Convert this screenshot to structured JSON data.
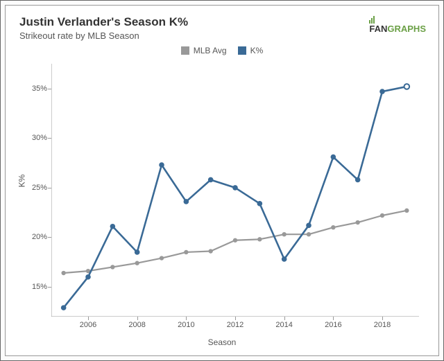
{
  "header": {
    "title": "Justin Verlander's Season K%",
    "subtitle": "Strikeout rate by MLB Season"
  },
  "brand": {
    "prefix": "FAN",
    "suffix": "GRAPHS"
  },
  "legend": {
    "items": [
      {
        "label": "MLB Avg",
        "color": "#999999"
      },
      {
        "label": "K%",
        "color": "#3a6a96"
      }
    ]
  },
  "axes": {
    "x": {
      "label": "Season",
      "min": 2004.5,
      "max": 2019.5,
      "ticks": [
        2006,
        2008,
        2010,
        2012,
        2014,
        2016,
        2018
      ]
    },
    "y": {
      "label": "K%",
      "min": 12,
      "max": 37.5,
      "ticks": [
        15,
        20,
        25,
        30,
        35
      ],
      "tick_suffix": "%"
    }
  },
  "series": [
    {
      "name": "MLB Avg",
      "color": "#999999",
      "line_width": 2.2,
      "marker_radius": 3.2,
      "x": [
        2005,
        2006,
        2007,
        2008,
        2009,
        2010,
        2011,
        2012,
        2013,
        2014,
        2015,
        2016,
        2017,
        2018,
        2019
      ],
      "y": [
        16.4,
        16.6,
        17.0,
        17.4,
        17.9,
        18.5,
        18.6,
        19.7,
        19.8,
        20.3,
        20.3,
        21.0,
        21.5,
        22.2,
        22.7
      ]
    },
    {
      "name": "K%",
      "color": "#3a6a96",
      "line_width": 2.6,
      "marker_radius": 3.8,
      "x": [
        2005,
        2006,
        2007,
        2008,
        2009,
        2010,
        2011,
        2012,
        2013,
        2014,
        2015,
        2016,
        2017,
        2018,
        2019
      ],
      "y": [
        12.9,
        16.0,
        21.1,
        18.5,
        27.3,
        23.6,
        25.8,
        25.0,
        23.4,
        17.8,
        21.2,
        28.1,
        25.8,
        34.7,
        35.2
      ],
      "hollow_last": true
    }
  ],
  "style": {
    "background": "#ffffff",
    "axis_color": "#999999",
    "tick_font_size": 11,
    "label_font_size": 12,
    "title_font_size": 17
  }
}
